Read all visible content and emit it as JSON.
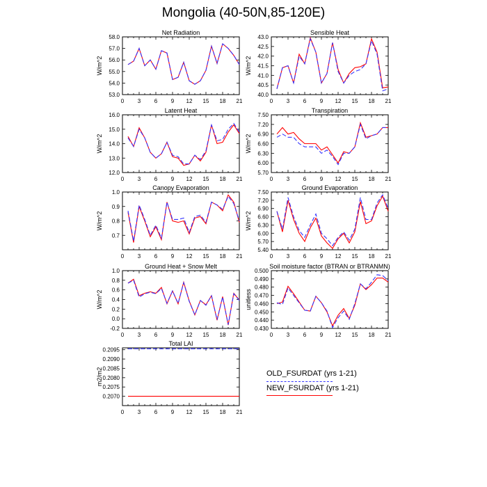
{
  "figure": {
    "title": "Mongolia (40-50N,85-120E)"
  },
  "legend": [
    {
      "label": "OLD_FSURDAT (yrs 1-21)",
      "color": "#3333ff",
      "dash": true
    },
    {
      "label": "NEW_FSURDAT (yrs 1-21)",
      "color": "#ff0000",
      "dash": false
    }
  ],
  "chart_data": [
    {
      "type": "line",
      "title": "Net Radiation",
      "ylabel": "W/m^2",
      "xlim": [
        0,
        21
      ],
      "ylim": [
        53.0,
        58.0
      ],
      "yticks": [
        "53.0",
        "54.0",
        "55.0",
        "56.0",
        "57.0",
        "58.0"
      ],
      "xticks": [
        "0",
        "3",
        "6",
        "9",
        "12",
        "15",
        "18",
        "21"
      ],
      "x": [
        1,
        2,
        3,
        4,
        5,
        6,
        7,
        8,
        9,
        10,
        11,
        12,
        13,
        14,
        15,
        16,
        17,
        18,
        19,
        20,
        21
      ],
      "series": [
        {
          "name": "OLD_FSURDAT (yrs 1-21)",
          "values": [
            55.6,
            55.9,
            57.0,
            55.5,
            56.0,
            55.2,
            56.8,
            56.6,
            54.3,
            54.5,
            55.8,
            54.2,
            53.9,
            54.2,
            55.1,
            57.2,
            55.7,
            57.4,
            57.0,
            56.4,
            55.6
          ]
        },
        {
          "name": "NEW_FSURDAT (yrs 1-21)",
          "values": [
            55.6,
            55.9,
            57.0,
            55.5,
            56.0,
            55.2,
            56.8,
            56.6,
            54.3,
            54.5,
            55.8,
            54.2,
            53.9,
            54.2,
            55.1,
            57.2,
            55.7,
            57.4,
            57.0,
            56.4,
            55.6
          ]
        }
      ]
    },
    {
      "type": "line",
      "title": "Sensible Heat",
      "ylabel": "W/m^2",
      "xlim": [
        0,
        21
      ],
      "ylim": [
        40.0,
        43.0
      ],
      "yticks": [
        "40.0",
        "40.5",
        "41.0",
        "41.5",
        "42.0",
        "42.5",
        "43.0"
      ],
      "xticks": [
        "0",
        "3",
        "6",
        "9",
        "12",
        "15",
        "18",
        "21"
      ],
      "x": [
        1,
        2,
        3,
        4,
        5,
        6,
        7,
        8,
        9,
        10,
        11,
        12,
        13,
        14,
        15,
        16,
        17,
        18,
        19,
        20,
        21
      ],
      "series": [
        {
          "name": "OLD_FSURDAT (yrs 1-21)",
          "values": [
            40.3,
            41.4,
            41.5,
            40.6,
            42.0,
            41.6,
            42.9,
            42.2,
            40.6,
            41.1,
            42.7,
            41.2,
            40.6,
            41.0,
            41.2,
            41.3,
            41.6,
            42.8,
            42.1,
            40.2,
            40.3
          ]
        },
        {
          "name": "NEW_FSURDAT (yrs 1-21)",
          "values": [
            40.3,
            41.4,
            41.5,
            40.6,
            42.1,
            41.6,
            42.95,
            42.2,
            40.6,
            41.1,
            42.7,
            41.3,
            40.6,
            41.1,
            41.4,
            41.45,
            41.6,
            42.9,
            42.2,
            40.35,
            40.4
          ]
        }
      ]
    },
    {
      "type": "line",
      "title": "Latent Heat",
      "ylabel": "W/m^2",
      "xlim": [
        0,
        21
      ],
      "ylim": [
        12.0,
        16.0
      ],
      "yticks": [
        "12.0",
        "13.0",
        "14.0",
        "15.0",
        "16.0"
      ],
      "xticks": [
        "0",
        "3",
        "6",
        "9",
        "12",
        "15",
        "18",
        "21"
      ],
      "x": [
        1,
        2,
        3,
        4,
        5,
        6,
        7,
        8,
        9,
        10,
        11,
        12,
        13,
        14,
        15,
        16,
        17,
        18,
        19,
        20,
        21
      ],
      "series": [
        {
          "name": "OLD_FSURDAT (yrs 1-21)",
          "values": [
            14.4,
            13.8,
            15.0,
            14.4,
            13.4,
            13.0,
            13.3,
            14.1,
            13.2,
            13.1,
            12.6,
            12.6,
            13.2,
            12.9,
            13.5,
            15.3,
            14.2,
            14.3,
            15.0,
            15.4,
            14.8
          ]
        },
        {
          "name": "NEW_FSURDAT (yrs 1-21)",
          "values": [
            14.5,
            13.8,
            15.1,
            14.4,
            13.4,
            13.0,
            13.3,
            14.1,
            13.1,
            13.0,
            12.5,
            12.6,
            13.2,
            12.8,
            13.4,
            15.3,
            14.0,
            14.1,
            14.8,
            15.3,
            14.7
          ]
        }
      ]
    },
    {
      "type": "line",
      "title": "Transpiration",
      "ylabel": "W/m^2",
      "xlim": [
        0,
        21
      ],
      "ylim": [
        5.7,
        7.5
      ],
      "yticks": [
        "5.70",
        "6.00",
        "6.30",
        "6.60",
        "6.90",
        "7.20",
        "7.50"
      ],
      "xticks": [
        "0",
        "3",
        "6",
        "9",
        "12",
        "15",
        "18",
        "21"
      ],
      "x": [
        1,
        2,
        3,
        4,
        5,
        6,
        7,
        8,
        9,
        10,
        11,
        12,
        13,
        14,
        15,
        16,
        17,
        18,
        19,
        20,
        21
      ],
      "series": [
        {
          "name": "OLD_FSURDAT (yrs 1-21)",
          "values": [
            6.8,
            6.9,
            6.8,
            6.8,
            6.6,
            6.5,
            6.5,
            6.5,
            6.3,
            6.4,
            6.2,
            5.95,
            6.3,
            6.3,
            6.5,
            7.2,
            6.75,
            6.85,
            6.9,
            7.1,
            7.1
          ]
        },
        {
          "name": "NEW_FSURDAT (yrs 1-21)",
          "values": [
            6.9,
            7.1,
            6.9,
            6.95,
            6.75,
            6.6,
            6.6,
            6.6,
            6.4,
            6.5,
            6.25,
            6.0,
            6.35,
            6.3,
            6.5,
            7.25,
            6.8,
            6.85,
            6.9,
            7.1,
            7.1
          ]
        }
      ]
    },
    {
      "type": "line",
      "title": "Canopy Evaporation",
      "ylabel": "W/m^2",
      "xlim": [
        0,
        21
      ],
      "ylim": [
        0.6,
        1.0
      ],
      "yticks": [
        "0.7",
        "0.8",
        "0.9",
        "1.0"
      ],
      "xticks": [
        "0",
        "3",
        "6",
        "9",
        "12",
        "15",
        "18",
        "21"
      ],
      "x": [
        1,
        2,
        3,
        4,
        5,
        6,
        7,
        8,
        9,
        10,
        11,
        12,
        13,
        14,
        15,
        16,
        17,
        18,
        19,
        20,
        21
      ],
      "series": [
        {
          "name": "OLD_FSURDAT (yrs 1-21)",
          "values": [
            0.87,
            0.66,
            0.91,
            0.81,
            0.7,
            0.77,
            0.68,
            0.93,
            0.81,
            0.81,
            0.82,
            0.72,
            0.83,
            0.84,
            0.79,
            0.93,
            0.91,
            0.88,
            0.97,
            0.92,
            0.8
          ]
        },
        {
          "name": "NEW_FSURDAT (yrs 1-21)",
          "values": [
            0.86,
            0.65,
            0.9,
            0.8,
            0.69,
            0.76,
            0.67,
            0.93,
            0.8,
            0.79,
            0.8,
            0.71,
            0.82,
            0.83,
            0.78,
            0.93,
            0.91,
            0.87,
            0.98,
            0.93,
            0.79
          ]
        }
      ]
    },
    {
      "type": "line",
      "title": "Ground Evaporation",
      "ylabel": "W/m^2",
      "xlim": [
        0,
        21
      ],
      "ylim": [
        5.4,
        7.5
      ],
      "yticks": [
        "5.40",
        "5.70",
        "6.00",
        "6.30",
        "6.60",
        "6.90",
        "7.20",
        "7.50"
      ],
      "xticks": [
        "0",
        "3",
        "6",
        "9",
        "12",
        "15",
        "18",
        "21"
      ],
      "x": [
        1,
        2,
        3,
        4,
        5,
        6,
        7,
        8,
        9,
        10,
        11,
        12,
        13,
        14,
        15,
        16,
        17,
        18,
        19,
        20,
        21
      ],
      "series": [
        {
          "name": "OLD_FSURDAT (yrs 1-21)",
          "values": [
            6.8,
            6.15,
            7.3,
            6.6,
            6.1,
            5.85,
            6.3,
            6.7,
            6.0,
            5.8,
            5.55,
            5.85,
            6.05,
            5.75,
            6.15,
            7.3,
            6.5,
            6.5,
            7.1,
            7.4,
            6.9
          ]
        },
        {
          "name": "NEW_FSURDAT (yrs 1-21)",
          "values": [
            6.8,
            6.05,
            7.2,
            6.5,
            6.0,
            5.7,
            6.2,
            6.55,
            5.9,
            5.65,
            5.45,
            5.8,
            6.0,
            5.65,
            6.05,
            7.15,
            6.35,
            6.45,
            7.0,
            7.35,
            6.8
          ]
        }
      ]
    },
    {
      "type": "line",
      "title": "Ground Heat + Snow Melt",
      "ylabel": "W/m^2",
      "xlim": [
        0,
        21
      ],
      "ylim": [
        -0.2,
        1.0
      ],
      "yticks": [
        "-0.2",
        "0.0",
        "0.2",
        "0.4",
        "0.6",
        "0.8",
        "1.0"
      ],
      "xticks": [
        "0",
        "3",
        "6",
        "9",
        "12",
        "15",
        "18",
        "21"
      ],
      "x": [
        1,
        2,
        3,
        4,
        5,
        6,
        7,
        8,
        9,
        10,
        11,
        12,
        13,
        14,
        15,
        16,
        17,
        18,
        19,
        20,
        21
      ],
      "series": [
        {
          "name": "OLD_FSURDAT (yrs 1-21)",
          "values": [
            0.74,
            0.8,
            0.45,
            0.52,
            0.55,
            0.52,
            0.63,
            0.32,
            0.58,
            0.32,
            0.75,
            0.36,
            0.08,
            0.38,
            0.28,
            0.48,
            -0.02,
            0.45,
            -0.12,
            0.52,
            0.38
          ]
        },
        {
          "name": "NEW_FSURDAT (yrs 1-21)",
          "values": [
            0.74,
            0.82,
            0.48,
            0.53,
            0.56,
            0.53,
            0.65,
            0.31,
            0.58,
            0.31,
            0.76,
            0.37,
            0.08,
            0.38,
            0.29,
            0.48,
            -0.03,
            0.46,
            -0.13,
            0.53,
            0.39
          ]
        }
      ]
    },
    {
      "type": "line",
      "title": "Soil moisture factor (BTRAN or BTRANMN)",
      "ylabel": "unitless",
      "xlim": [
        0,
        21
      ],
      "ylim": [
        0.43,
        0.5
      ],
      "yticks": [
        "0.430",
        "0.440",
        "0.450",
        "0.460",
        "0.470",
        "0.480",
        "0.490",
        "0.500"
      ],
      "xticks": [
        "0",
        "3",
        "6",
        "9",
        "12",
        "15",
        "18",
        "21"
      ],
      "x": [
        1,
        2,
        3,
        4,
        5,
        6,
        7,
        8,
        9,
        10,
        11,
        12,
        13,
        14,
        15,
        16,
        17,
        18,
        19,
        20,
        21
      ],
      "series": [
        {
          "name": "OLD_FSURDAT (yrs 1-21)",
          "values": [
            0.461,
            0.459,
            0.479,
            0.47,
            0.461,
            0.452,
            0.451,
            0.469,
            0.461,
            0.451,
            0.431,
            0.443,
            0.451,
            0.441,
            0.46,
            0.484,
            0.478,
            0.486,
            0.495,
            0.494,
            0.488
          ]
        },
        {
          "name": "NEW_FSURDAT (yrs 1-21)",
          "values": [
            0.46,
            0.462,
            0.481,
            0.472,
            0.462,
            0.452,
            0.451,
            0.469,
            0.461,
            0.45,
            0.433,
            0.446,
            0.454,
            0.442,
            0.458,
            0.484,
            0.477,
            0.483,
            0.491,
            0.491,
            0.486
          ]
        }
      ]
    },
    {
      "type": "line",
      "title": "Total LAI",
      "ylabel": "m2/m2",
      "xlim": [
        0,
        21
      ],
      "ylim": [
        0.2065,
        0.2096
      ],
      "yticks": [
        "0.2070",
        "0.2075",
        "0.2080",
        "0.2085",
        "0.2090",
        "0.2095"
      ],
      "xticks": [
        "0",
        "3",
        "6",
        "9",
        "12",
        "15",
        "18",
        "21"
      ],
      "x": [
        1,
        2,
        3,
        4,
        5,
        6,
        7,
        8,
        9,
        10,
        11,
        12,
        13,
        14,
        15,
        16,
        17,
        18,
        19,
        20,
        21
      ],
      "series": [
        {
          "name": "OLD_FSURDAT (yrs 1-21)",
          "values": [
            0.20955,
            0.20955,
            0.20955,
            0.20955,
            0.20955,
            0.20955,
            0.20955,
            0.20955,
            0.20955,
            0.20955,
            0.20955,
            0.20955,
            0.20955,
            0.20955,
            0.20955,
            0.20955,
            0.20955,
            0.20955,
            0.20955,
            0.20955,
            0.20955
          ]
        },
        {
          "name": "NEW_FSURDAT (yrs 1-21)",
          "values": [
            0.207,
            0.207,
            0.207,
            0.207,
            0.207,
            0.207,
            0.207,
            0.207,
            0.207,
            0.207,
            0.207,
            0.207,
            0.207,
            0.207,
            0.207,
            0.207,
            0.207,
            0.207,
            0.207,
            0.207,
            0.207
          ]
        }
      ]
    }
  ]
}
